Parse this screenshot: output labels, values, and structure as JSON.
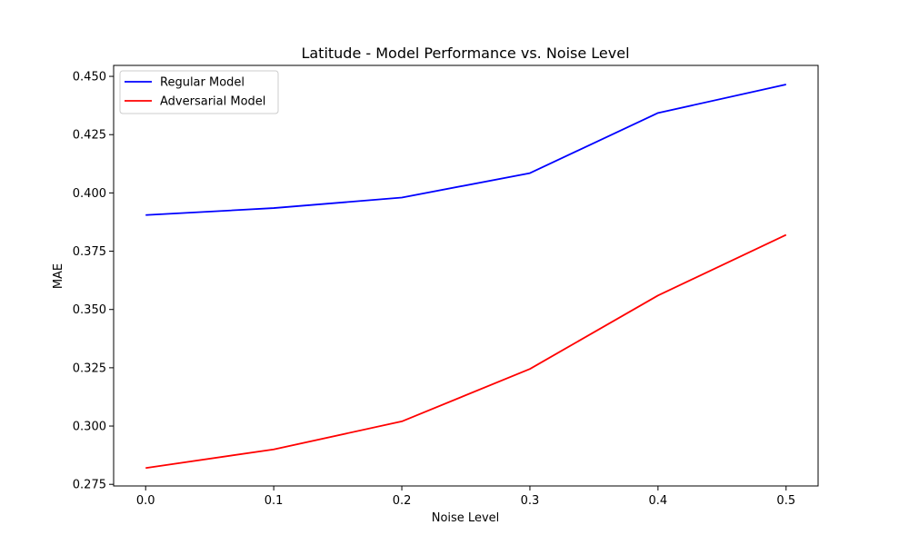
{
  "chart_data": {
    "type": "line",
    "title": "Latitude - Model Performance vs. Noise Level",
    "xlabel": "Noise Level",
    "ylabel": "MAE",
    "x": [
      0.0,
      0.1,
      0.2,
      0.3,
      0.4,
      0.5
    ],
    "xlim": [
      -0.025,
      0.525
    ],
    "ylim": [
      0.2743,
      0.4547
    ],
    "xticks": [
      "0.0",
      "0.1",
      "0.2",
      "0.3",
      "0.4",
      "0.5"
    ],
    "yticks": [
      "0.275",
      "0.300",
      "0.325",
      "0.350",
      "0.375",
      "0.400",
      "0.425",
      "0.450"
    ],
    "grid": false,
    "legend": "top-left",
    "series": [
      {
        "name": "Regular Model",
        "color": "#0000ff",
        "values": [
          0.3905,
          0.3935,
          0.398,
          0.4085,
          0.4343,
          0.4465
        ]
      },
      {
        "name": "Adversarial Model",
        "color": "#ff0000",
        "values": [
          0.282,
          0.29,
          0.302,
          0.3245,
          0.356,
          0.382
        ]
      }
    ]
  }
}
